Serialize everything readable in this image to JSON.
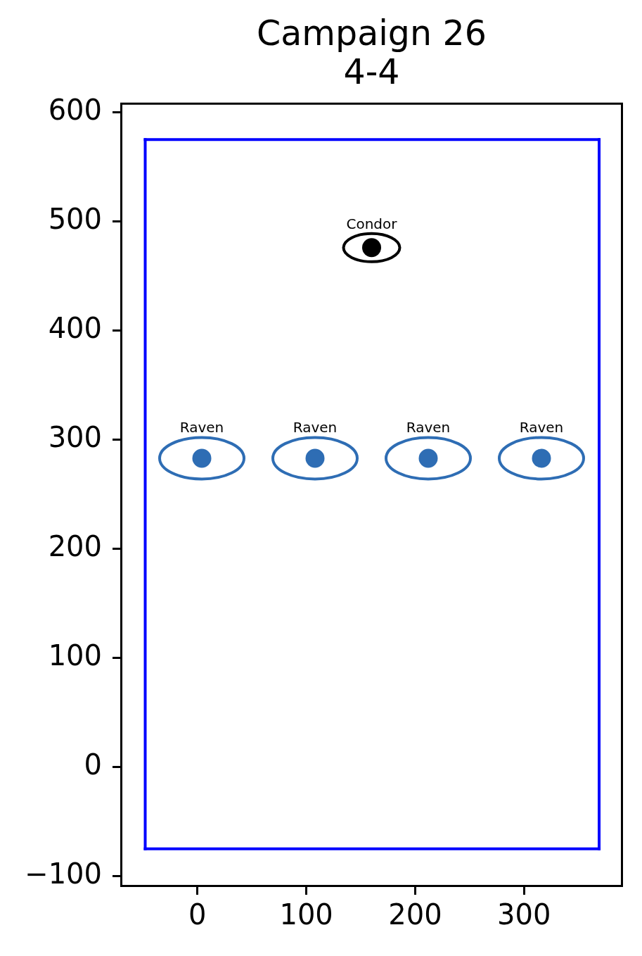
{
  "chart_data": {
    "type": "scatter",
    "title": "Campaign 26\n4-4",
    "xlim": [
      -69,
      389
    ],
    "ylim": [
      -108,
      607
    ],
    "xticks": [
      0,
      100,
      200,
      300
    ],
    "yticks": [
      {
        "value": -100,
        "label": "−100"
      },
      0,
      100,
      200,
      300,
      400,
      500,
      600
    ],
    "marker": "circle",
    "series": [
      {
        "name": "Raven",
        "color": "#2e6db4",
        "x": [
          4,
          108,
          212,
          316
        ],
        "values": [
          283,
          283,
          283,
          283
        ]
      },
      {
        "name": "Condor",
        "color": "#000000",
        "x": [
          160
        ],
        "values": [
          476
        ]
      },
      {
        "type": "line",
        "color": "#0000ff",
        "marker": "none",
        "x": [
          -48,
          369
        ],
        "values": [
          -75,
          -75
        ]
      },
      {
        "type": "line",
        "color": "#0000ff",
        "marker": "none",
        "x": [
          -48,
          369
        ],
        "values": [
          575,
          575
        ]
      },
      {
        "type": "line",
        "color": "#0000ff",
        "marker": "none",
        "x": [
          -48,
          -48
        ],
        "values": [
          -75,
          575
        ]
      },
      {
        "type": "line",
        "color": "#0000ff",
        "marker": "none",
        "x": [
          369,
          369
        ],
        "values": [
          -75,
          575
        ]
      }
    ]
  }
}
